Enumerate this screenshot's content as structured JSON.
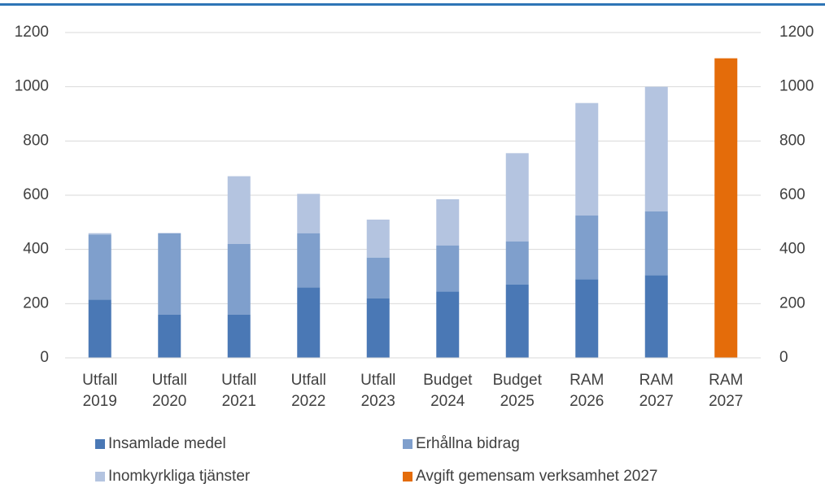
{
  "chart_data": {
    "type": "bar",
    "stacked": true,
    "categories": [
      "Utfall 2019",
      "Utfall 2020",
      "Utfall 2021",
      "Utfall 2022",
      "Utfall 2023",
      "Budget 2024",
      "Budget 2025",
      "RAM 2026",
      "RAM 2027",
      "RAM 2027"
    ],
    "series": [
      {
        "name": "Insamlade medel",
        "color": "#4a78b5",
        "values": [
          215,
          160,
          160,
          260,
          220,
          245,
          270,
          290,
          305,
          null
        ]
      },
      {
        "name": "Erhållna bidrag",
        "color": "#7f9fcc",
        "values": [
          240,
          300,
          260,
          200,
          150,
          170,
          160,
          235,
          235,
          null
        ]
      },
      {
        "name": "Inomkyrkliga tjänster",
        "color": "#b4c4e0",
        "values": [
          5,
          0,
          250,
          145,
          140,
          170,
          325,
          415,
          460,
          null
        ]
      },
      {
        "name": "Avgift gemensam verksamhet 2027",
        "color": "#e46c0a",
        "axis": "y2",
        "values": [
          null,
          null,
          null,
          null,
          null,
          null,
          null,
          null,
          null,
          1105
        ]
      }
    ],
    "ylim": [
      0,
      1200
    ],
    "yticks": [
      0,
      200,
      400,
      600,
      800,
      1000,
      1200
    ],
    "y2lim": [
      0,
      1200
    ],
    "y2ticks": [
      0,
      200,
      400,
      600,
      800,
      1000,
      1200
    ],
    "grid": true,
    "legend": "bottom"
  }
}
